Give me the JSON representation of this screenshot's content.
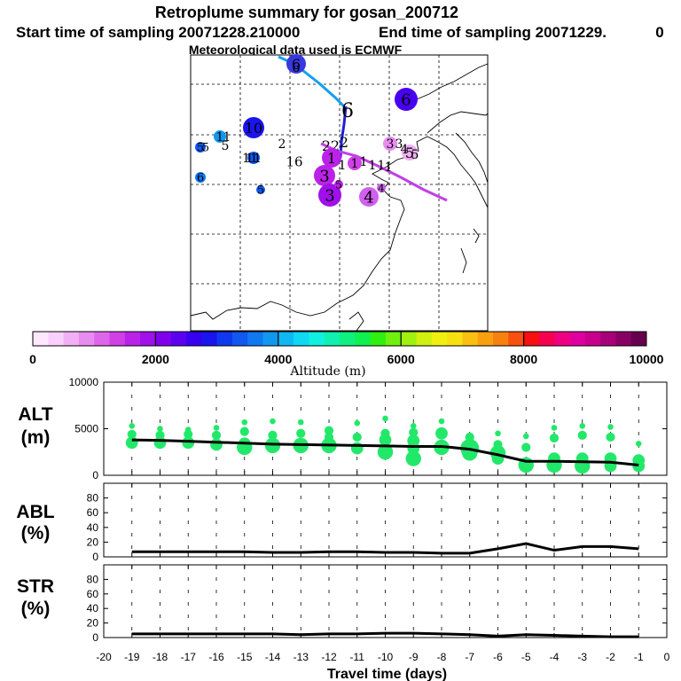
{
  "header": {
    "title": "Retroplume summary for gosan_200712",
    "start_label": "Start time of sampling 20071228.210000",
    "end_label": "End time of sampling 20071229.",
    "end_value": "0",
    "met_label": "Meteorological data used is ECMWF"
  },
  "colorbar": {
    "label": "Altitude (m)",
    "ticks": [
      "0",
      "2000",
      "4000",
      "6000",
      "8000",
      "10000"
    ],
    "colors": [
      "#ffe8ff",
      "#f9d0fb",
      "#f1b0f5",
      "#e98cf0",
      "#de66eb",
      "#cf40e6",
      "#bb22e8",
      "#a010ea",
      "#8000ee",
      "#5c00f0",
      "#3800f0",
      "#1a14ee",
      "#1038ee",
      "#1058ee",
      "#1078f0",
      "#1098f0",
      "#10b8f2",
      "#10d8f2",
      "#10f0e0",
      "#10f0b0",
      "#10f080",
      "#10f050",
      "#30f010",
      "#70f010",
      "#a0f010",
      "#d0f010",
      "#f0f010",
      "#f8e010",
      "#f8c010",
      "#f8a010",
      "#f88010",
      "#f85010",
      "#f81010",
      "#f80050",
      "#f00080",
      "#e000a0",
      "#c8008c",
      "#a80078",
      "#880064",
      "#680050"
    ]
  },
  "map": {
    "trajectory_labels": [
      "6",
      "6",
      "6",
      "10",
      "2",
      "2",
      "2",
      "2",
      "1",
      "11",
      "11",
      "16",
      "3",
      "3",
      "4",
      "4",
      "5",
      "5",
      "5",
      "5",
      "1",
      "1",
      "1",
      "1",
      "1",
      "1",
      "1",
      "3",
      "3",
      "4",
      "5",
      "5",
      "5",
      "1",
      "6",
      "6"
    ]
  },
  "chart_data": [
    {
      "type": "line",
      "panel": "ALT",
      "ylabel_line1": "ALT",
      "ylabel_line2": "(m)",
      "ylim": [
        0,
        10000
      ],
      "yticks": [
        "0",
        "5000",
        "10000"
      ],
      "x": [
        -19,
        -18,
        -17,
        -16,
        -15,
        -14,
        -13,
        -12,
        -11,
        -10,
        -9,
        -8,
        -7,
        -6,
        -5,
        -4,
        -3,
        -2,
        -1
      ],
      "mean": [
        3800,
        3750,
        3650,
        3550,
        3450,
        3350,
        3300,
        3250,
        3200,
        3150,
        3100,
        3100,
        2800,
        2200,
        1500,
        1500,
        1450,
        1400,
        1100
      ],
      "clusters": [
        [
          [
            5300,
            1
          ],
          [
            4400,
            2
          ],
          [
            3500,
            3
          ],
          [
            3200,
            1
          ]
        ],
        [
          [
            5000,
            1
          ],
          [
            4300,
            2
          ],
          [
            3500,
            3
          ]
        ],
        [
          [
            4900,
            1
          ],
          [
            4400,
            2
          ],
          [
            3500,
            3
          ]
        ],
        [
          [
            5100,
            1
          ],
          [
            4300,
            2
          ],
          [
            3300,
            3
          ]
        ],
        [
          [
            5700,
            1
          ],
          [
            4700,
            2
          ],
          [
            3400,
            3
          ],
          [
            3000,
            4
          ]
        ],
        [
          [
            5800,
            1
          ],
          [
            4300,
            2
          ],
          [
            3200,
            4
          ]
        ],
        [
          [
            5700,
            1
          ],
          [
            4500,
            2
          ],
          [
            3200,
            4
          ]
        ],
        [
          [
            4800,
            2
          ],
          [
            4100,
            2
          ],
          [
            3200,
            4
          ]
        ],
        [
          [
            5600,
            1
          ],
          [
            4100,
            2
          ],
          [
            2900,
            3
          ]
        ],
        [
          [
            6100,
            1
          ],
          [
            4500,
            2
          ],
          [
            3800,
            3
          ],
          [
            2500,
            4
          ]
        ],
        [
          [
            5300,
            1
          ],
          [
            4600,
            2
          ],
          [
            3700,
            3
          ],
          [
            2900,
            3
          ],
          [
            1800,
            4
          ]
        ],
        [
          [
            5800,
            1
          ],
          [
            4500,
            3
          ],
          [
            3000,
            4
          ]
        ],
        [
          [
            4100,
            2
          ],
          [
            2900,
            5
          ],
          [
            2400,
            4
          ]
        ],
        [
          [
            4500,
            1
          ],
          [
            3300,
            2
          ],
          [
            2400,
            4
          ],
          [
            1800,
            3
          ]
        ],
        [
          [
            4200,
            1
          ],
          [
            3000,
            2
          ],
          [
            1100,
            4
          ]
        ],
        [
          [
            5100,
            1
          ],
          [
            4000,
            2
          ],
          [
            1800,
            3
          ],
          [
            1100,
            4
          ]
        ],
        [
          [
            5300,
            1
          ],
          [
            4300,
            2
          ],
          [
            1800,
            3
          ],
          [
            1000,
            4
          ]
        ],
        [
          [
            5200,
            1
          ],
          [
            4100,
            2
          ],
          [
            1800,
            3
          ],
          [
            1000,
            3
          ]
        ],
        [
          [
            3400,
            1
          ],
          [
            1600,
            3
          ],
          [
            1000,
            3
          ]
        ]
      ]
    },
    {
      "type": "line",
      "panel": "ABL",
      "ylabel_line1": "ABL",
      "ylabel_line2": "(%)",
      "ylim": [
        0,
        100
      ],
      "yticks": [
        "0",
        "20",
        "40",
        "60",
        "80"
      ],
      "x": [
        -19,
        -18,
        -17,
        -16,
        -15,
        -14,
        -13,
        -12,
        -11,
        -10,
        -9,
        -8,
        -7,
        -6,
        -5,
        -4,
        -3,
        -2,
        -1
      ],
      "values": [
        7,
        7,
        7,
        7,
        7,
        6,
        6,
        7,
        7,
        6,
        6,
        5,
        5,
        11,
        18,
        9,
        14,
        14,
        11
      ]
    },
    {
      "type": "line",
      "panel": "STR",
      "ylabel_line1": "STR",
      "ylabel_line2": "(%)",
      "ylim": [
        0,
        100
      ],
      "yticks": [
        "0",
        "20",
        "40",
        "60",
        "80"
      ],
      "xticks": [
        "-20",
        "-19",
        "-18",
        "-17",
        "-16",
        "-15",
        "-14",
        "-13",
        "-12",
        "-11",
        "-10",
        "-9",
        "-8",
        "-7",
        "-6",
        "-5",
        "-4",
        "-3",
        "-2",
        "-1",
        "0"
      ],
      "xlabel": "Travel time (days)",
      "x": [
        -19,
        -18,
        -17,
        -16,
        -15,
        -14,
        -13,
        -12,
        -11,
        -10,
        -9,
        -8,
        -7,
        -6,
        -5,
        -4,
        -3,
        -2,
        -1
      ],
      "values": [
        5,
        5,
        5,
        5,
        5,
        5,
        4,
        5,
        5,
        6,
        6,
        5,
        4,
        2,
        4,
        3,
        2,
        1,
        1
      ]
    }
  ]
}
